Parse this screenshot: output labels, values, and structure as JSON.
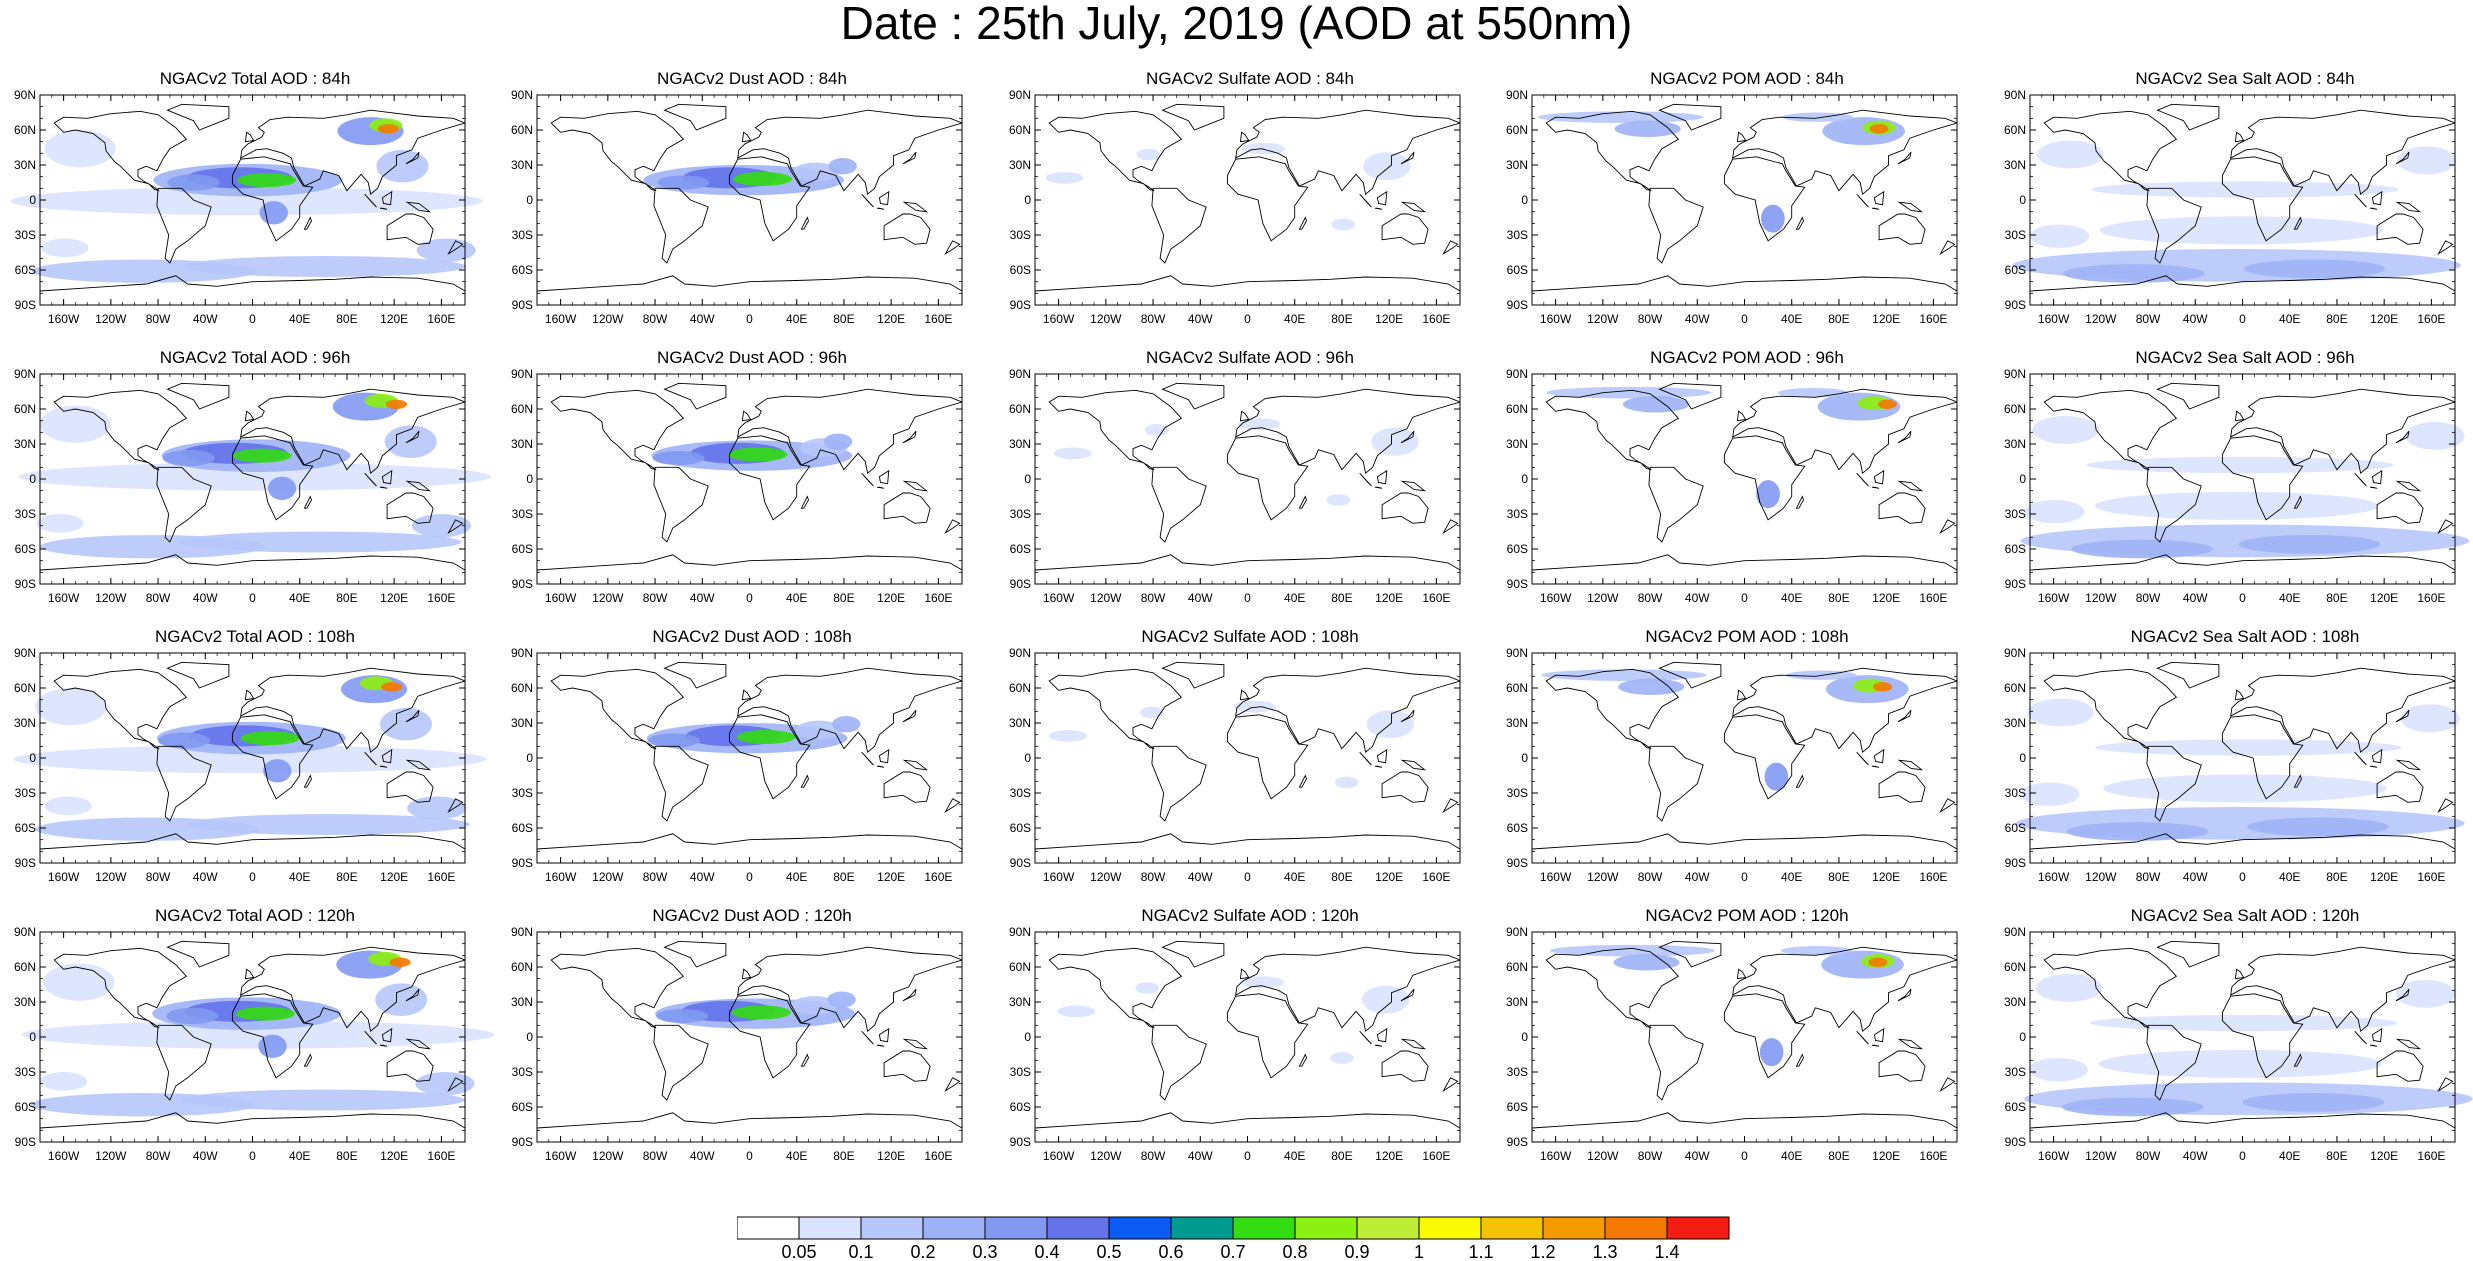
{
  "title": "Date : 25th July, 2019 (AOD at 550nm)",
  "rows": [
    [
      "NGACv2 Total AOD : 84h",
      "NGACv2 Dust AOD : 84h",
      "NGACv2 Sulfate AOD : 84h",
      "NGACv2 POM AOD : 84h",
      "NGACv2 Sea Salt AOD : 84h"
    ],
    [
      "NGACv2 Total AOD : 96h",
      "NGACv2 Dust AOD : 96h",
      "NGACv2 Sulfate AOD : 96h",
      "NGACv2 POM AOD : 96h",
      "NGACv2 Sea Salt AOD : 96h"
    ],
    [
      "NGACv2 Total AOD : 108h",
      "NGACv2 Dust AOD : 108h",
      "NGACv2 Sulfate AOD : 108h",
      "NGACv2 POM AOD : 108h",
      "NGACv2 Sea Salt AOD : 108h"
    ],
    [
      "NGACv2 Total AOD : 120h",
      "NGACv2 Dust AOD : 120h",
      "NGACv2 Sulfate AOD : 120h",
      "NGACv2 POM AOD : 120h",
      "NGACv2 Sea Salt  AOD : 120h"
    ]
  ],
  "lat_labels": [
    "90N",
    "60N",
    "30N",
    "0",
    "30S",
    "60S",
    "90S"
  ],
  "lon_labels": [
    "160W",
    "120W",
    "80W",
    "40W",
    "0",
    "40E",
    "80E",
    "120E",
    "160E"
  ],
  "colorbar": {
    "labels": [
      "0.05",
      "0.1",
      "0.2",
      "0.3",
      "0.4",
      "0.5",
      "0.6",
      "0.7",
      "0.8",
      "0.9",
      "1",
      "1.1",
      "1.2",
      "1.3",
      "1.4"
    ],
    "colors": [
      "#ffffff",
      "#d9e2ff",
      "#b7c6fb",
      "#9db2f6",
      "#8299f2",
      "#6473ea",
      "#0a5cf5",
      "#009b90",
      "#32dc10",
      "#8cf010",
      "#beed38",
      "#fafa00",
      "#f5c300",
      "#f59a00",
      "#f57800",
      "#f51e14"
    ]
  }
}
